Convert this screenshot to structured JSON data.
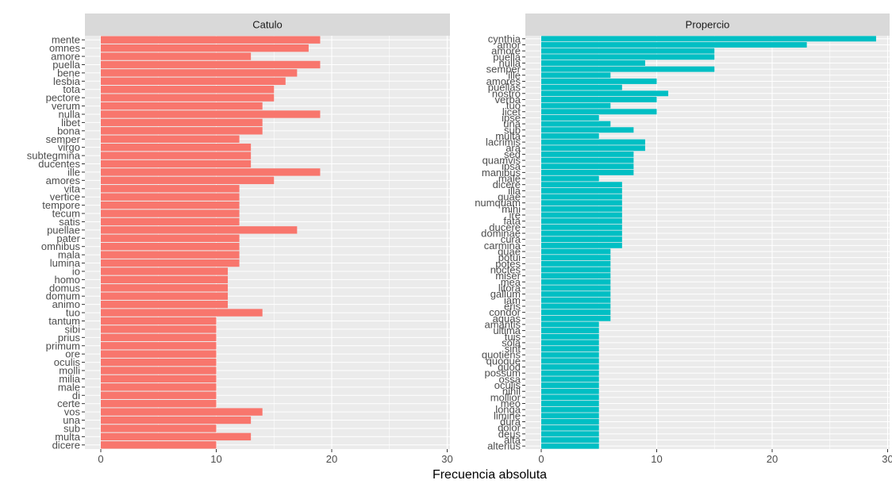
{
  "chart_data": {
    "type": "bar",
    "orientation": "horizontal",
    "xlabel": "Frecuencia absoluta",
    "ylabel": "",
    "xlim": [
      0,
      30
    ],
    "xticks": [
      0,
      10,
      20,
      30
    ],
    "grid": true,
    "legend": "none",
    "panels": [
      {
        "name": "Catulo",
        "color": "#F8766D",
        "categories": [
          "mente",
          "omnes",
          "amore",
          "puella",
          "bene",
          "lesbia",
          "tota",
          "pectore",
          "verum",
          "nulla",
          "libet",
          "bona",
          "semper",
          "virgo",
          "subtegmina",
          "ducentes",
          "ille",
          "amores",
          "vita",
          "vertice",
          "tempore",
          "tecum",
          "satis",
          "puellae",
          "pater",
          "omnibus",
          "mala",
          "lumina",
          "io",
          "homo",
          "domus",
          "domum",
          "animo",
          "tuo",
          "tantum",
          "sibi",
          "prius",
          "primum",
          "ore",
          "oculis",
          "molli",
          "milia",
          "male",
          "di",
          "certe",
          "vos",
          "una",
          "sub",
          "multa",
          "dicere"
        ],
        "values": [
          19,
          18,
          13,
          19,
          17,
          16,
          15,
          15,
          14,
          19,
          14,
          14,
          12,
          13,
          13,
          13,
          19,
          15,
          12,
          12,
          12,
          12,
          12,
          17,
          12,
          12,
          12,
          12,
          11,
          11,
          11,
          11,
          11,
          14,
          10,
          10,
          10,
          10,
          10,
          10,
          10,
          10,
          10,
          10,
          10,
          14,
          13,
          10,
          13,
          10
        ]
      },
      {
        "name": "Propercio",
        "color": "#00BFC4",
        "categories": [
          "cynthia",
          "amor",
          "amore",
          "puella",
          "nulla",
          "semper",
          "ille",
          "amores",
          "puellas",
          "nostro",
          "verba",
          "tuo",
          "licet",
          "ipse",
          "una",
          "sub",
          "multa",
          "lacrimis",
          "ara",
          "sed",
          "quamvis",
          "ipsa",
          "manibus",
          "male",
          "dicere",
          "illa",
          "quae",
          "numquam",
          "mihi",
          "ire",
          "fata",
          "ducere",
          "dominae",
          "cura",
          "carmina",
          "quae",
          "potui",
          "potes",
          "noctes",
          "miser",
          "mea",
          "litora",
          "gallum",
          "iam",
          "eris",
          "condor",
          "aquas",
          "amantis",
          "ultima",
          "tuis",
          "sola",
          "sint",
          "quotiens",
          "quoque",
          "quod",
          "possum",
          "ossa",
          "oculis",
          "nihil",
          "mollior",
          "meo",
          "longa",
          "limine",
          "dura",
          "dolor",
          "deus",
          "alta",
          "alterius"
        ],
        "values": [
          29,
          23,
          15,
          15,
          9,
          15,
          6,
          10,
          7,
          11,
          10,
          6,
          10,
          5,
          6,
          8,
          5,
          9,
          9,
          8,
          8,
          8,
          8,
          5,
          7,
          7,
          7,
          7,
          7,
          7,
          7,
          7,
          7,
          7,
          7,
          6,
          6,
          6,
          6,
          6,
          6,
          6,
          6,
          6,
          6,
          6,
          6,
          5,
          5,
          5,
          5,
          5,
          5,
          5,
          5,
          5,
          5,
          5,
          5,
          5,
          5,
          5,
          5,
          5,
          5,
          5,
          5,
          5
        ]
      }
    ]
  }
}
